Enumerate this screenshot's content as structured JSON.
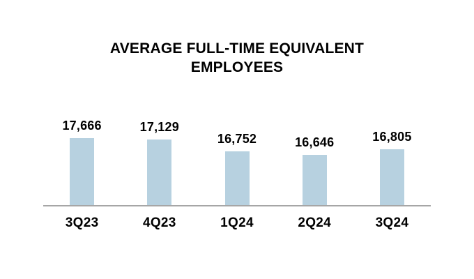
{
  "chart_data": {
    "type": "bar",
    "title": "AVERAGE FULL-TIME EQUIVALENT EMPLOYEES",
    "categories": [
      "3Q23",
      "4Q23",
      "1Q24",
      "2Q24",
      "3Q24"
    ],
    "values": [
      17666,
      17129,
      16752,
      16646,
      16805
    ],
    "value_labels": [
      "17,666",
      "17,129",
      "16,752",
      "16,646",
      "16,805"
    ],
    "xlabel": "",
    "ylabel": "",
    "ylim": [
      15000,
      17800
    ],
    "grid": false,
    "legend": false,
    "bar_color": "#b7d1e0",
    "axis_line_color": "#a6a6a6",
    "text_color": "#000000",
    "background_color": "#ffffff"
  }
}
